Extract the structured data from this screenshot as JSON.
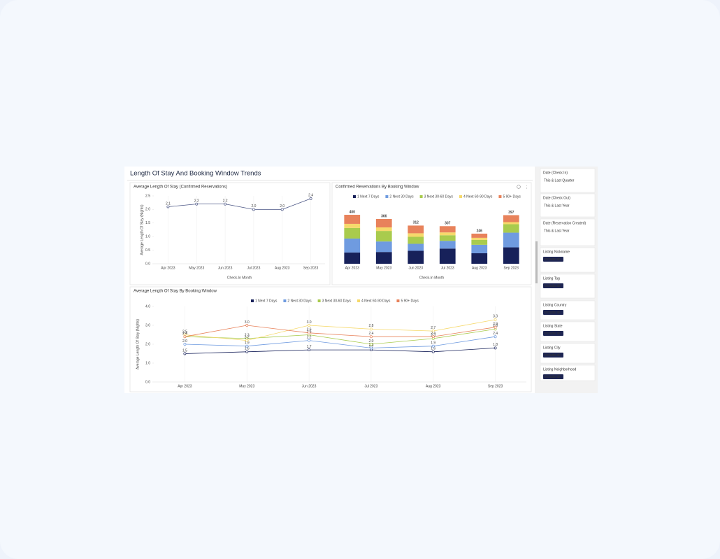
{
  "title": "Length Of Stay And Booking Window Trends",
  "chart_data": [
    {
      "type": "line",
      "title": "Average Length Of Stay (Confirmed Reservations)",
      "x_label": "Check-In Month",
      "y_label": "Average Length Of Stay (Nights)",
      "categories": [
        "Apr 2023",
        "May 2023",
        "Jun 2023",
        "Jul 2023",
        "Aug 2023",
        "Sep 2023"
      ],
      "values": [
        2.1,
        2.2,
        2.2,
        2.0,
        2.0,
        2.4
      ],
      "value_labels": [
        "2.1",
        "2.2",
        "2.2",
        "2.0",
        "2.0",
        "2.4"
      ],
      "color": "#4b5685",
      "ylim": [
        0,
        2.5
      ],
      "yticks": [
        {
          "value": 0,
          "label": "0.0"
        },
        {
          "value": 0.5,
          "label": "0.5"
        },
        {
          "value": 1,
          "label": "1.0"
        },
        {
          "value": 1.5,
          "label": "1.5"
        },
        {
          "value": 2,
          "label": "2.0"
        },
        {
          "value": 2.5,
          "label": "2.5"
        }
      ]
    },
    {
      "type": "stacked_bar",
      "title": "Confirmed Reservations By Booking Window",
      "x_label": "Check-In Month",
      "categories": [
        "Apr 2023",
        "May 2023",
        "Jun 2023",
        "Jul 2023",
        "Aug 2023",
        "Sep 2023"
      ],
      "series": [
        {
          "name": "1 Next 7 Days",
          "color": "#17215a",
          "values": [
            92,
            96,
            106,
            124,
            86,
            134
          ]
        },
        {
          "name": "2 Next 30 Days",
          "color": "#6f9be0",
          "values": [
            114,
            86,
            57,
            63,
            69,
            120
          ]
        },
        {
          "name": "3 Next 30-60 Days",
          "color": "#a9cb4d",
          "values": [
            86,
            86,
            57,
            46,
            40,
            69
          ]
        },
        {
          "name": "4 Next 60-90 Days",
          "color": "#f6d96b",
          "values": [
            34,
            29,
            29,
            23,
            17,
            17
          ]
        },
        {
          "name": "5 90+ Days",
          "color": "#e8825b",
          "values": [
            74,
            69,
            63,
            51,
            34,
            57
          ]
        }
      ],
      "totals": [
        400,
        366,
        312,
        307,
        246,
        397
      ]
    },
    {
      "type": "line",
      "title": "Average Length Of Stay By Booking Window",
      "y_label": "Average Length Of Stay (Nights)",
      "categories": [
        "Apr 2023",
        "May 2023",
        "Jun 2023",
        "Jul 2023",
        "Aug 2023",
        "Sep 2023"
      ],
      "series": [
        {
          "name": "1 Next 7 Days",
          "color": "#17215a",
          "values": [
            1.5,
            1.6,
            1.7,
            1.7,
            1.6,
            1.8
          ],
          "value_labels": [
            "1.5",
            "1.6",
            "1.7",
            "1.7",
            "1.6",
            "1.8"
          ]
        },
        {
          "name": "2 Next 30 Days",
          "color": "#6f9be0",
          "values": [
            2.0,
            1.9,
            2.2,
            1.8,
            1.9,
            2.4
          ],
          "value_labels": [
            "2.0",
            "1.9",
            "2.2",
            "1.8",
            "1.9",
            "2.4"
          ]
        },
        {
          "name": "3 Next 30-60 Days",
          "color": "#a9cb4d",
          "values": [
            2.4,
            2.3,
            2.5,
            2.0,
            2.3,
            2.8
          ],
          "value_labels": [
            "2.4",
            "2.3",
            "2.5",
            "2.0",
            "2.3",
            "2.8"
          ]
        },
        {
          "name": "4 Next 60-90 Days",
          "color": "#f6d96b",
          "values": [
            2.5,
            2.2,
            3.0,
            2.8,
            2.7,
            3.3
          ],
          "value_labels": [
            "2.5",
            "2.2",
            "3.0",
            "2.8",
            "2.7",
            "3.3"
          ]
        },
        {
          "name": "5 90+ Days",
          "color": "#e8825b",
          "values": [
            2.4,
            3.0,
            2.6,
            2.4,
            2.4,
            2.9
          ],
          "value_labels": [
            "2.4",
            "3.0",
            "2.6",
            "2.4",
            "2.4",
            "2.9"
          ]
        }
      ],
      "ylim": [
        0,
        4
      ],
      "yticks": [
        {
          "value": 0,
          "label": "0.0"
        },
        {
          "value": 1,
          "label": "1.0"
        },
        {
          "value": 2,
          "label": "2.0"
        },
        {
          "value": 3,
          "label": "3.0"
        },
        {
          "value": 4,
          "label": "4.0"
        }
      ]
    }
  ],
  "filters": [
    {
      "label": "Date (Check In)",
      "value": "This & Last Quarter"
    },
    {
      "label": "Date (Check Out)",
      "value": "This & Last Year"
    },
    {
      "label": "Date (Reservation Created)",
      "value": "This & Last Year"
    },
    {
      "label": "Listing Nickname",
      "button": "Include all"
    },
    {
      "label": "Listing Tag",
      "button": "Include all"
    },
    {
      "label": "Listing Country",
      "button": "Include all"
    },
    {
      "label": "Listing State",
      "button": "Include all"
    },
    {
      "label": "Listing City",
      "button": "Include all"
    },
    {
      "label": "Listing Neighborhood",
      "button": "Include all"
    }
  ]
}
